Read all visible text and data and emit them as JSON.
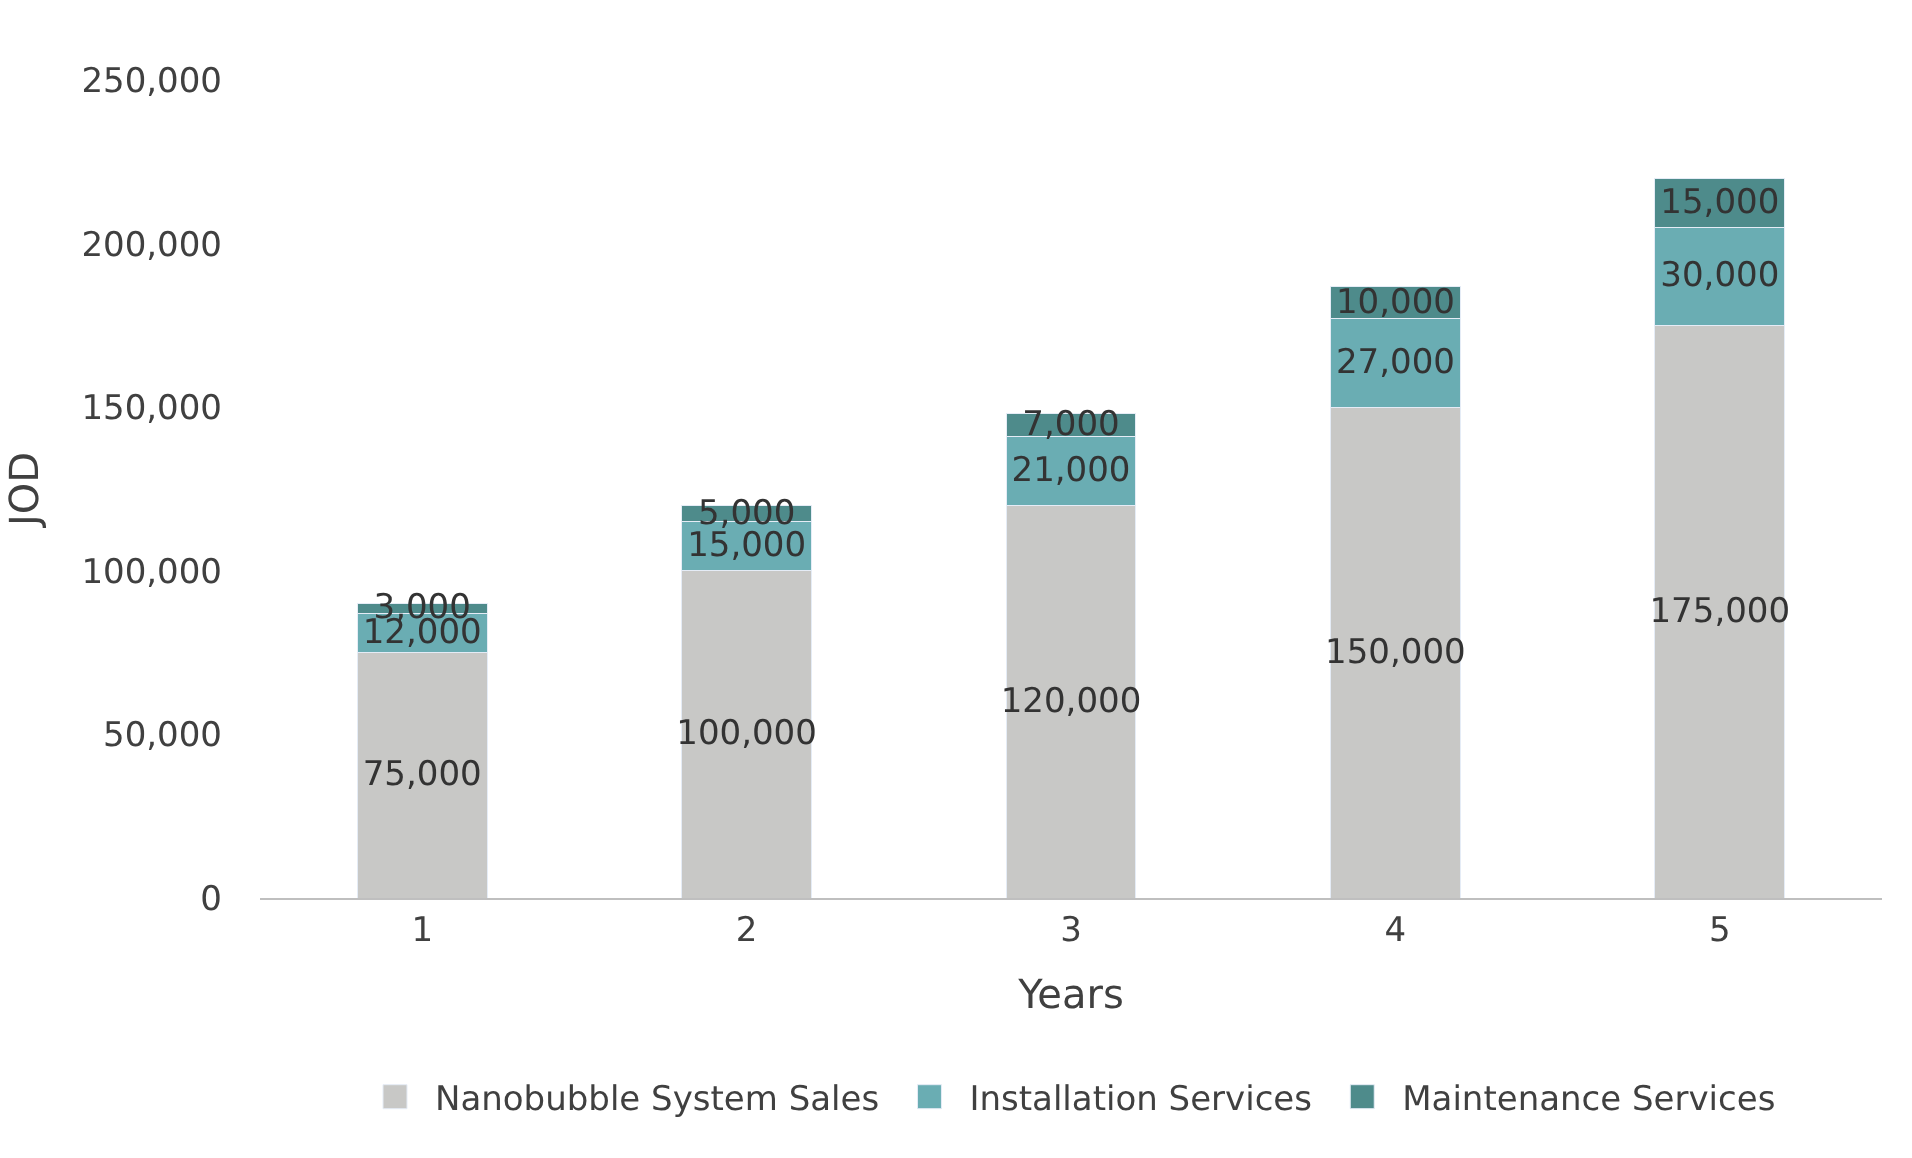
{
  "chart_data": {
    "type": "bar",
    "stacked": true,
    "xlabel": "Years",
    "ylabel": "JOD",
    "categories": [
      "1",
      "2",
      "3",
      "4",
      "5"
    ],
    "series": [
      {
        "name": "Nanobubble System Sales",
        "color": "#c8c8c6",
        "values": [
          75000,
          100000,
          120000,
          150000,
          175000
        ],
        "value_labels": [
          "75,000",
          "100,000",
          "120,000",
          "150,000",
          "175,000"
        ]
      },
      {
        "name": "Installation Services",
        "color": "#6aadb3",
        "values": [
          12000,
          15000,
          21000,
          27000,
          30000
        ],
        "value_labels": [
          "12,000",
          "15,000",
          "21,000",
          "27,000",
          "30,000"
        ]
      },
      {
        "name": "Maintenance Services",
        "color": "#4e8b8b",
        "values": [
          3000,
          5000,
          7000,
          10000,
          15000
        ],
        "value_labels": [
          "3,000",
          "5,000",
          "7,000",
          "10,000",
          "15,000"
        ]
      }
    ],
    "ylim": [
      0,
      250000
    ],
    "yticks": [
      {
        "value": 0,
        "label": "0"
      },
      {
        "value": 50000,
        "label": "50,000"
      },
      {
        "value": 100000,
        "label": "100,000"
      },
      {
        "value": 150000,
        "label": "150,000"
      },
      {
        "value": 200000,
        "label": "200,000"
      },
      {
        "value": 250000,
        "label": "250,000"
      }
    ],
    "grid": false,
    "legend": "bottom"
  }
}
